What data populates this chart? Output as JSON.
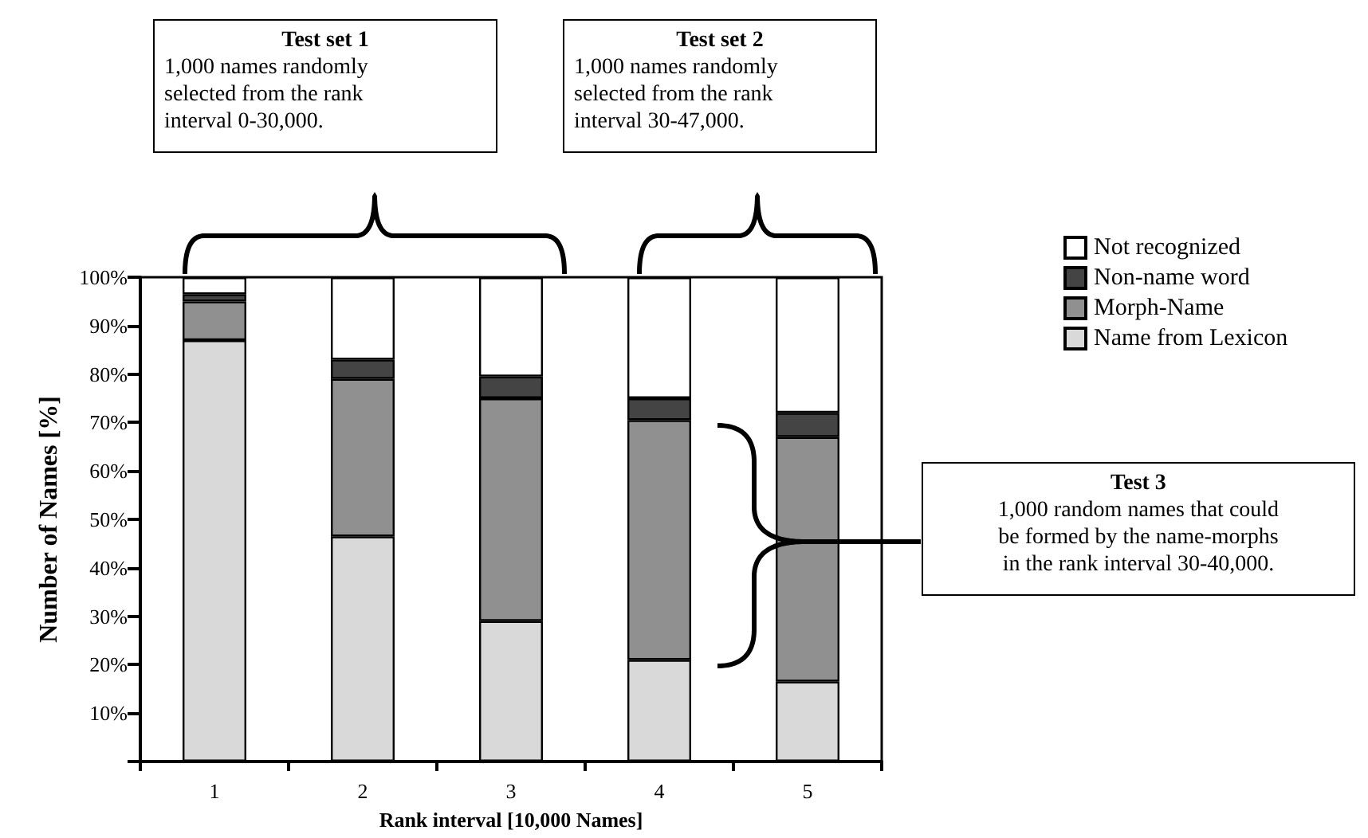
{
  "chart_data": {
    "type": "bar",
    "stacked": true,
    "xlabel": "Rank interval [10,000 Names]",
    "ylabel": "Number of Names [%]",
    "categories": [
      "1",
      "2",
      "3",
      "4",
      "5"
    ],
    "series": [
      {
        "name": "Name from Lexicon",
        "color": "#d9d9d9",
        "values": [
          87,
          46.5,
          29,
          21,
          16.5
        ]
      },
      {
        "name": "Morph-Name",
        "color": "#909090",
        "values": [
          8,
          32.5,
          46,
          49.5,
          50.5
        ]
      },
      {
        "name": "Non-name word",
        "color": "#444444",
        "values": [
          1.5,
          4,
          4.5,
          4.5,
          5
        ]
      },
      {
        "name": "Not recognized",
        "color": "#ffffff",
        "values": [
          3.5,
          17,
          20.5,
          25,
          28
        ]
      }
    ],
    "ylim": [
      0,
      100
    ],
    "yticks": [
      {
        "value": 0,
        "label": null
      },
      {
        "value": 10,
        "label": "10%"
      },
      {
        "value": 20,
        "label": "20%"
      },
      {
        "value": 30,
        "label": "30%"
      },
      {
        "value": 40,
        "label": "40%"
      },
      {
        "value": 50,
        "label": "50%"
      },
      {
        "value": 60,
        "label": "60%"
      },
      {
        "value": 70,
        "label": "70%"
      },
      {
        "value": 80,
        "label": "80%"
      },
      {
        "value": 90,
        "label": "90%"
      },
      {
        "value": 100,
        "label": "100%"
      }
    ],
    "grid": false,
    "legend": "right",
    "annotations": [
      "Test set 1\n1,000 names randomly\nselected from the rank\ninterval 0-30,000.",
      "Test set 2\n1,000 names randomly\nselected from the rank\ninterval 30-47,000.",
      "Test 3\n1,000 random names that could\nbe formed by the name-morphs\nin the rank interval 30-40,000."
    ]
  }
}
